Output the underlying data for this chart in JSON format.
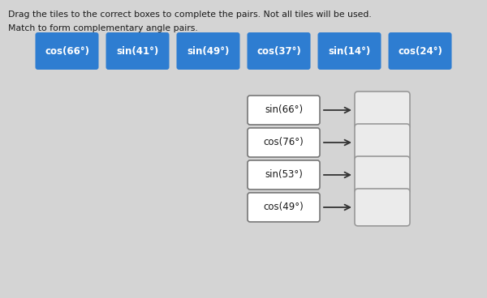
{
  "bg_color": "#d4d4d4",
  "title_line1": "Drag the tiles to the correct boxes to complete the pairs. Not all tiles will be used.",
  "title_line2": "Match to form complementary angle pairs.",
  "tiles": [
    "cos(66°)",
    "sin(41°)",
    "sin(49°)",
    "cos(37°)",
    "sin(14°)",
    "cos(24°)"
  ],
  "tile_color": "#2e7dd1",
  "tile_text_color": "#ffffff",
  "left_boxes": [
    "sin(66°)",
    "cos(76°)",
    "sin(53°)",
    "cos(49°)"
  ],
  "left_box_bg": "#ffffff",
  "left_box_border": "#777777",
  "right_box_bg": "#ebebeb",
  "right_box_border": "#999999",
  "arrow_color": "#333333",
  "text_color": "#1a1a1a",
  "font_size_title": 7.8,
  "font_size_tile": 8.5,
  "font_size_box": 8.5
}
